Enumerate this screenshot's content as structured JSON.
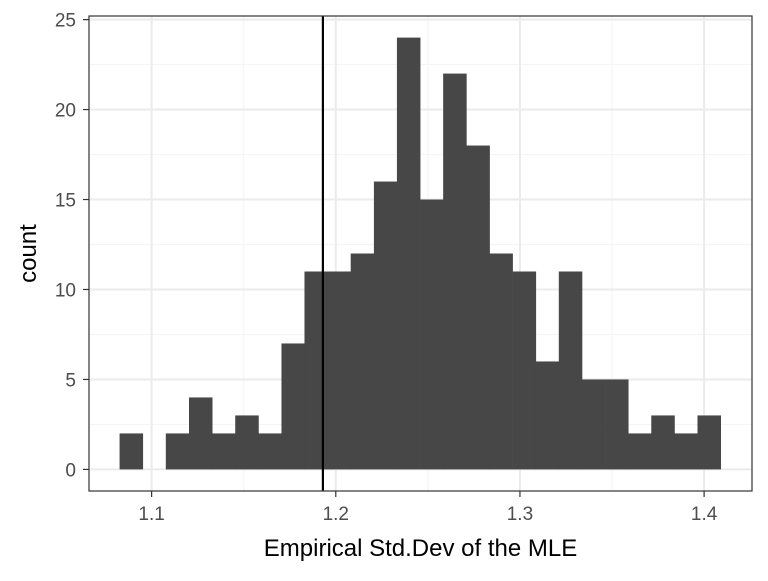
{
  "chart_data": {
    "type": "bar",
    "xlabel": "Empirical Std.Dev of the MLE",
    "ylabel": "count",
    "xlim": [
      1.066,
      1.426
    ],
    "ylim": [
      -1.2,
      25.2
    ],
    "x_ticks": [
      "1.1",
      "1.2",
      "1.3",
      "1.4"
    ],
    "y_ticks": [
      "0",
      "5",
      "10",
      "15",
      "20",
      "25"
    ],
    "grid": true,
    "bin_width": 0.01255,
    "bin_starts": [
      1.0826,
      1.0952,
      1.1077,
      1.1203,
      1.1328,
      1.1454,
      1.1579,
      1.1705,
      1.183,
      1.1956,
      1.2081,
      1.2207,
      1.2332,
      1.2458,
      1.2583,
      1.2709,
      1.2834,
      1.296,
      1.3085,
      1.3211,
      1.3336,
      1.3462,
      1.3587,
      1.3713,
      1.3838,
      1.3964
    ],
    "values": [
      2,
      0,
      2,
      4,
      2,
      3,
      2,
      7,
      11,
      11,
      12,
      16,
      24,
      15,
      22,
      18,
      12,
      11,
      6,
      11,
      5,
      5,
      2,
      3,
      2,
      3
    ],
    "vline": 1.193,
    "colors": {
      "bar": "#474747",
      "vline": "#000000",
      "panel_border": "#333333",
      "grid_major": "#ebebeb",
      "grid_minor": "#f5f5f5"
    }
  }
}
